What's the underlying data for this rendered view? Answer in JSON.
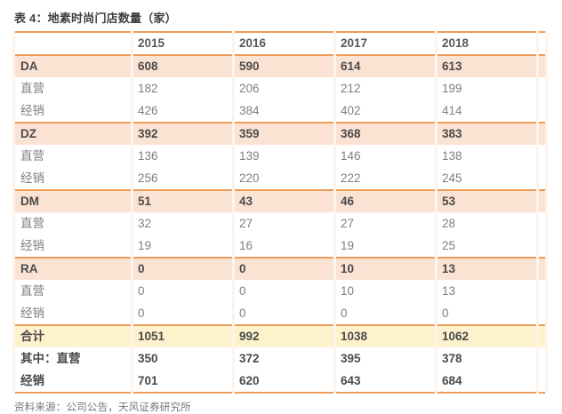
{
  "page": {
    "title": "表 4：地素时尚门店数量（家）",
    "source": "资料来源：公司公告，天风证券研究所"
  },
  "colors": {
    "accent_orange": "#EC9D5B",
    "brand_row_bg": "#FBE3D3",
    "total_row_bg": "#FDF2CC",
    "dark_text": "#4A4A4A",
    "muted_text": "#7F7F7F"
  },
  "chart_data": {
    "type": "table",
    "title": "表 4：地素时尚门店数量（家）",
    "columns": [
      "",
      "2015",
      "2016",
      "2017",
      "2018"
    ],
    "rows": [
      {
        "label": "DA",
        "style": "brand",
        "values": [
          608,
          590,
          614,
          613
        ]
      },
      {
        "label": "直营",
        "style": "sub",
        "values": [
          182,
          206,
          212,
          199
        ]
      },
      {
        "label": "经销",
        "style": "sub",
        "values": [
          426,
          384,
          402,
          414
        ]
      },
      {
        "label": "DZ",
        "style": "brand",
        "values": [
          392,
          359,
          368,
          383
        ]
      },
      {
        "label": "直营",
        "style": "sub",
        "values": [
          136,
          139,
          146,
          138
        ]
      },
      {
        "label": "经销",
        "style": "sub",
        "values": [
          256,
          220,
          222,
          245
        ]
      },
      {
        "label": "DM",
        "style": "brand",
        "values": [
          51,
          43,
          46,
          53
        ]
      },
      {
        "label": "直营",
        "style": "sub",
        "values": [
          32,
          27,
          27,
          28
        ]
      },
      {
        "label": "经销",
        "style": "sub",
        "values": [
          19,
          16,
          19,
          25
        ]
      },
      {
        "label": "RA",
        "style": "brand",
        "values": [
          0,
          0,
          10,
          13
        ]
      },
      {
        "label": "直营",
        "style": "sub",
        "values": [
          0,
          0,
          10,
          13
        ]
      },
      {
        "label": "经销",
        "style": "sub",
        "values": [
          0,
          0,
          0,
          0
        ]
      },
      {
        "label": "合计",
        "style": "total",
        "values": [
          1051,
          992,
          1038,
          1062
        ]
      },
      {
        "label": "其中：直营",
        "style": "emphasis",
        "values": [
          350,
          372,
          395,
          378
        ]
      },
      {
        "label": "经销",
        "style": "emphasis",
        "values": [
          701,
          620,
          643,
          684
        ]
      }
    ],
    "legend": null,
    "source": "资料来源：公司公告，天风证券研究所"
  }
}
